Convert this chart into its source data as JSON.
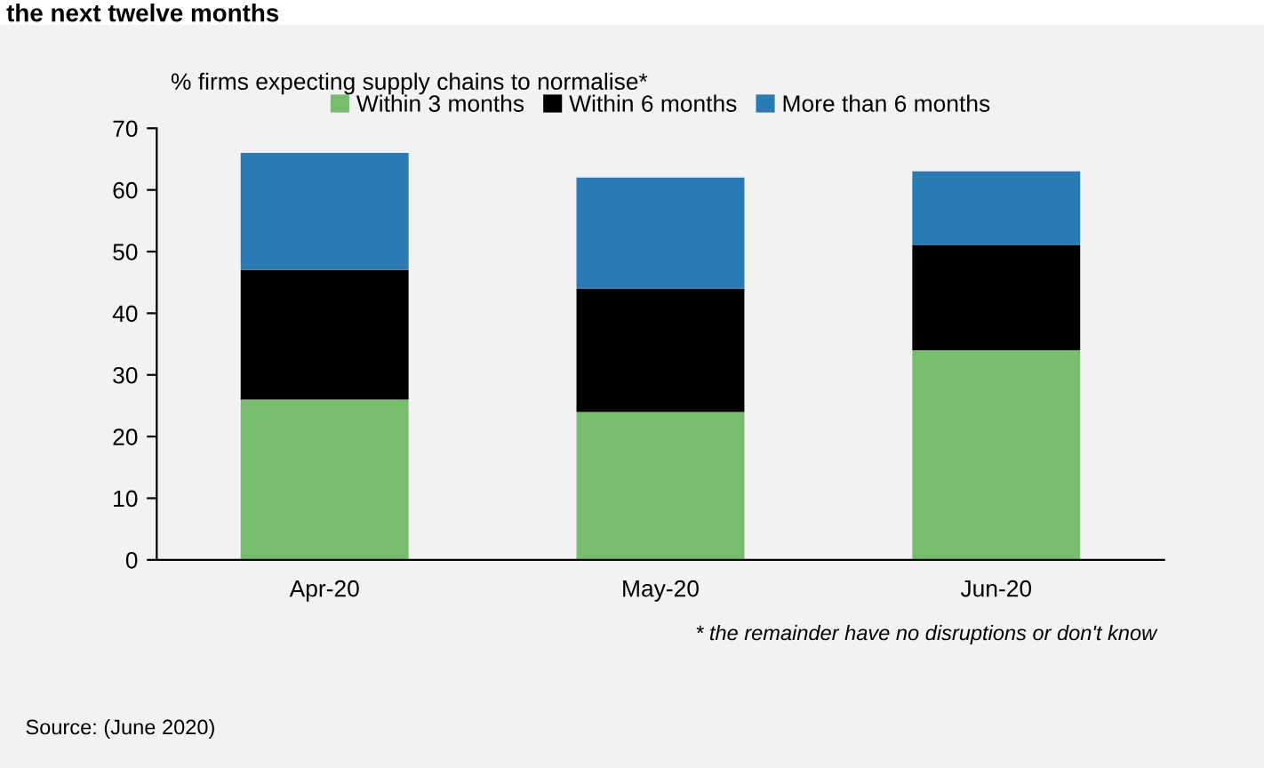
{
  "chart_data": {
    "type": "bar",
    "stacked": true,
    "title": "the next twelve months",
    "subtitle": "% firms expecting supply chains to normalise*",
    "categories": [
      "Apr-20",
      "May-20",
      "Jun-20"
    ],
    "series": [
      {
        "name": "Within 3 months",
        "color": "#77bc6f",
        "values": [
          26,
          24,
          34
        ]
      },
      {
        "name": "Within 6 months",
        "color": "#000000",
        "values": [
          21,
          20,
          17
        ]
      },
      {
        "name": "More than 6 months",
        "color": "#2a7ab4",
        "values": [
          19,
          18,
          12
        ]
      }
    ],
    "ylim": [
      0,
      70
    ],
    "yticks": [
      0,
      10,
      20,
      30,
      40,
      50,
      60,
      70
    ],
    "grid": false,
    "legend": "top",
    "annotations": [
      "* the remainder have no disruptions or don't know",
      "Source: (June 2020)"
    ]
  }
}
